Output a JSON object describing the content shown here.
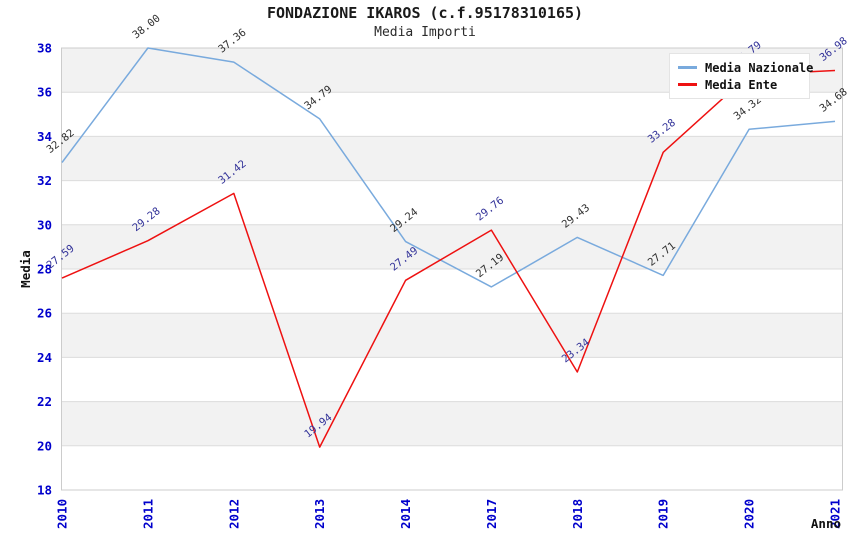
{
  "header": {
    "title": "FONDAZIONE IKAROS (c.f.95178310165)",
    "subtitle": "Media Importi"
  },
  "legend": {
    "items": [
      {
        "label": "Media Nazionale",
        "color": "#79aadd"
      },
      {
        "label": "Media Ente",
        "color": "#ee1111"
      }
    ]
  },
  "chart_data": {
    "type": "line",
    "title": "FONDAZIONE IKAROS (c.f.95178310165)",
    "subtitle": "Media Importi",
    "xlabel": "Anno",
    "ylabel": "Media",
    "x": [
      2010,
      2011,
      2012,
      2013,
      2014,
      2017,
      2018,
      2019,
      2020,
      2021
    ],
    "series": [
      {
        "name": "Media Nazionale",
        "color": "#79aadd",
        "label_color": "#303030",
        "values": [
          32.82,
          38.0,
          37.36,
          34.79,
          29.24,
          27.19,
          29.43,
          27.71,
          34.32,
          34.68
        ]
      },
      {
        "name": "Media Ente",
        "color": "#ee1111",
        "label_color": "#333399",
        "values": [
          27.59,
          29.28,
          31.42,
          19.94,
          27.49,
          29.76,
          23.34,
          33.28,
          36.79,
          36.98
        ]
      }
    ],
    "ylim": [
      18,
      38
    ],
    "ytick_step": 2,
    "grid": "horizontal-bands-alternating",
    "legend_position": "top-right",
    "colors": {
      "tick_label": "#0000cc",
      "band_fill": "#f2f2f2",
      "grid_line": "#dcdcdc",
      "plot_border": "#cccccc",
      "axis_label": "#111111"
    }
  }
}
